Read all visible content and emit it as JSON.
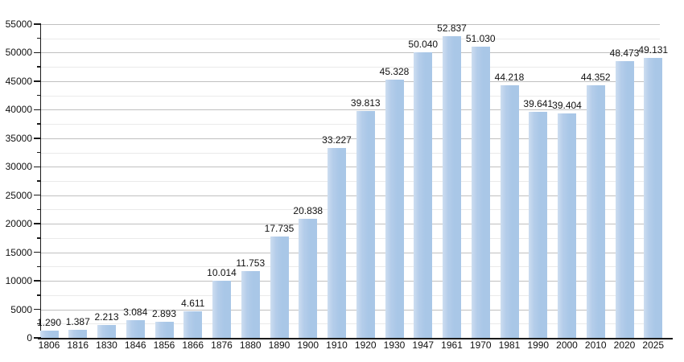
{
  "chart_data": {
    "type": "bar",
    "title": "",
    "xlabel": "",
    "ylabel": "",
    "categories": [
      "1806",
      "1816",
      "1830",
      "1846",
      "1856",
      "1866",
      "1876",
      "1880",
      "1890",
      "1900",
      "1910",
      "1920",
      "1930",
      "1947",
      "1961",
      "1970",
      "1981",
      "1990",
      "2000",
      "2010",
      "2020",
      "2025"
    ],
    "values": [
      1290,
      1387,
      2213,
      3084,
      2893,
      4611,
      10014,
      11753,
      17735,
      20838,
      33227,
      39813,
      45328,
      50040,
      52837,
      51030,
      44218,
      39641,
      39404,
      44352,
      48473,
      49131
    ],
    "value_labels": [
      "1.290",
      "1.387",
      "2.213",
      "3.084",
      "2.893",
      "4.611",
      "10.014",
      "11.753",
      "17.735",
      "20.838",
      "33.227",
      "39.813",
      "45.328",
      "50.040",
      "52.837",
      "51.030",
      "44.218",
      "39.641",
      "39.404",
      "44.352",
      "48.473",
      "49.131"
    ],
    "ylim": [
      0,
      55000
    ],
    "ytick_step": 5000,
    "minor_tick_step": 2500,
    "ytick_labels": [
      "0",
      "5000",
      "10000",
      "15000",
      "20000",
      "25000",
      "30000",
      "35000",
      "40000",
      "45000",
      "50000",
      "55000"
    ],
    "grid": true,
    "legend_position": "none",
    "colors": {
      "bar": "#a9c7e7",
      "bar_highlight": "#cdddf0",
      "grid_major": "#c0c0c0",
      "grid_minor": "#eaeaea",
      "axis": "#1a1a1a",
      "text": "#111111",
      "background": "#ffffff"
    }
  }
}
